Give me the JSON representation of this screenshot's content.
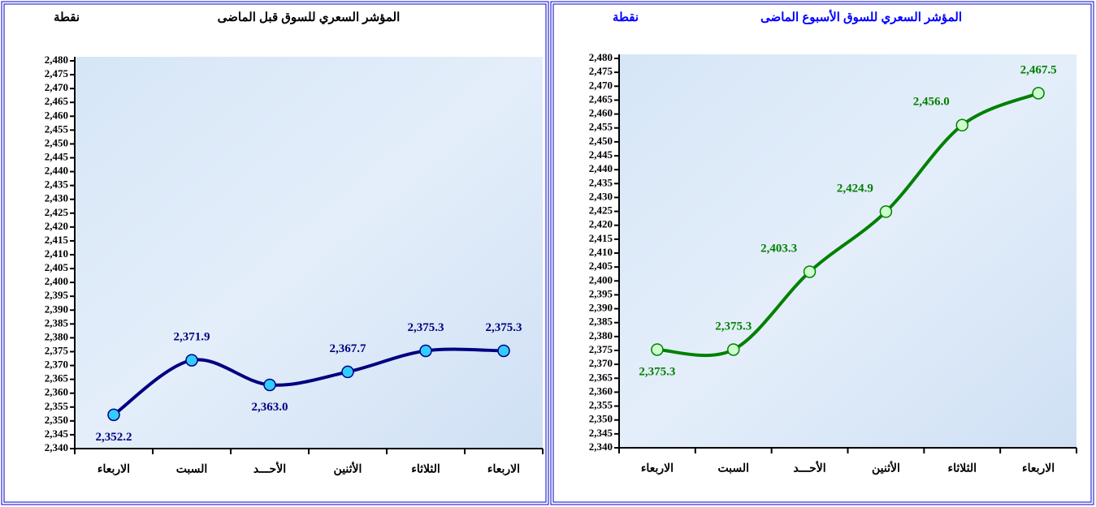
{
  "chart_data": [
    {
      "type": "line",
      "title": "المؤشر السعري للسوق قبل الماضى",
      "y_label": "نقطة",
      "categories": [
        "الاربعاء",
        "السبت",
        "الأحـــد",
        "الأثنين",
        "الثلاثاء",
        "الاربعاء"
      ],
      "series": [
        {
          "name": "",
          "color": "#000080",
          "marker_color": "#33ccff",
          "values": [
            2352.2,
            2371.9,
            2363.0,
            2367.7,
            2375.3,
            2375.3
          ],
          "value_labels": [
            "2,352.2",
            "2,371.9",
            "2,363.0",
            "2,367.7",
            "2,375.3",
            "2,375.3"
          ]
        }
      ],
      "ylim": [
        2340,
        2480
      ],
      "yticks": [
        {
          "value": 2340,
          "label": "2,340"
        },
        {
          "value": 2345,
          "label": "2,345"
        },
        {
          "value": 2350,
          "label": "2,350"
        },
        {
          "value": 2355,
          "label": "2,355"
        },
        {
          "value": 2360,
          "label": "2,360"
        },
        {
          "value": 2365,
          "label": "2,365"
        },
        {
          "value": 2370,
          "label": "2,370"
        },
        {
          "value": 2375,
          "label": "2,375"
        },
        {
          "value": 2380,
          "label": "2,380"
        },
        {
          "value": 2385,
          "label": "2,385"
        },
        {
          "value": 2390,
          "label": "2,390"
        },
        {
          "value": 2395,
          "label": "2,395"
        },
        {
          "value": 2400,
          "label": "2,400"
        },
        {
          "value": 2405,
          "label": "2,405"
        },
        {
          "value": 2410,
          "label": "2,410"
        },
        {
          "value": 2415,
          "label": "2,415"
        },
        {
          "value": 2420,
          "label": "2,420"
        },
        {
          "value": 2425,
          "label": "2,425"
        },
        {
          "value": 2430,
          "label": "2,430"
        },
        {
          "value": 2435,
          "label": "2,435"
        },
        {
          "value": 2440,
          "label": "2,440"
        },
        {
          "value": 2445,
          "label": "2,445"
        },
        {
          "value": 2450,
          "label": "2,450"
        },
        {
          "value": 2455,
          "label": "2,455"
        },
        {
          "value": 2460,
          "label": "2,460"
        },
        {
          "value": 2465,
          "label": "2,465"
        },
        {
          "value": 2470,
          "label": "2,470"
        },
        {
          "value": 2475,
          "label": "2,475"
        },
        {
          "value": 2480,
          "label": "2,480"
        }
      ],
      "title_color": "#000000"
    },
    {
      "type": "line",
      "title": "المؤشر السعري للسوق الأسبوع الماضى",
      "y_label": "نقطة",
      "categories": [
        "الاربعاء",
        "السبت",
        "الأحـــد",
        "الأثنين",
        "الثلاثاء",
        "الاربعاء"
      ],
      "series": [
        {
          "name": "",
          "color": "#008000",
          "marker_color": "#ccffcc",
          "values": [
            2375.3,
            2375.3,
            2403.3,
            2424.9,
            2456.0,
            2467.5
          ],
          "value_labels": [
            "2,375.3",
            "2,375.3",
            "2,403.3",
            "2,424.9",
            "2,456.0",
            "2,467.5"
          ]
        }
      ],
      "ylim": [
        2340,
        2480
      ],
      "yticks": [
        {
          "value": 2340,
          "label": "2,340"
        },
        {
          "value": 2345,
          "label": "2,345"
        },
        {
          "value": 2350,
          "label": "2,350"
        },
        {
          "value": 2355,
          "label": "2,355"
        },
        {
          "value": 2360,
          "label": "2,360"
        },
        {
          "value": 2365,
          "label": "2,365"
        },
        {
          "value": 2370,
          "label": "2,370"
        },
        {
          "value": 2375,
          "label": "2,375"
        },
        {
          "value": 2380,
          "label": "2,380"
        },
        {
          "value": 2385,
          "label": "2,385"
        },
        {
          "value": 2390,
          "label": "2,390"
        },
        {
          "value": 2395,
          "label": "2,395"
        },
        {
          "value": 2400,
          "label": "2,400"
        },
        {
          "value": 2405,
          "label": "2,405"
        },
        {
          "value": 2410,
          "label": "2,410"
        },
        {
          "value": 2415,
          "label": "2,415"
        },
        {
          "value": 2420,
          "label": "2,420"
        },
        {
          "value": 2425,
          "label": "2,425"
        },
        {
          "value": 2430,
          "label": "2,430"
        },
        {
          "value": 2435,
          "label": "2,435"
        },
        {
          "value": 2440,
          "label": "2,440"
        },
        {
          "value": 2445,
          "label": "2,445"
        },
        {
          "value": 2450,
          "label": "2,450"
        },
        {
          "value": 2455,
          "label": "2,455"
        },
        {
          "value": 2460,
          "label": "2,460"
        },
        {
          "value": 2465,
          "label": "2,465"
        },
        {
          "value": 2470,
          "label": "2,470"
        },
        {
          "value": 2475,
          "label": "2,475"
        },
        {
          "value": 2480,
          "label": "2,480"
        }
      ],
      "title_color": "#0000ff"
    }
  ]
}
